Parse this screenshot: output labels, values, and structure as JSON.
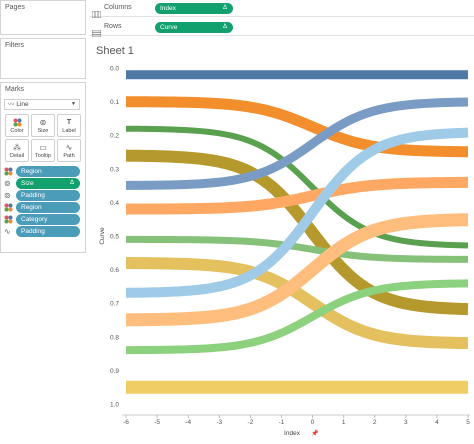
{
  "panels": {
    "pages": "Pages",
    "filters": "Filters",
    "marks": "Marks"
  },
  "shelves": {
    "columns": {
      "label": "Columns",
      "pill": "Index",
      "delta": "Δ"
    },
    "rows": {
      "label": "Rows",
      "pill": "Curve",
      "delta": "Δ"
    }
  },
  "marks": {
    "mark_type": "Line",
    "buttons": [
      {
        "label": "Color",
        "icon": "color-icon"
      },
      {
        "label": "Size",
        "icon": "size-icon"
      },
      {
        "label": "Label",
        "icon": "label-icon"
      },
      {
        "label": "Detail",
        "icon": "detail-icon"
      },
      {
        "label": "Tooltip",
        "icon": "tooltip-icon"
      },
      {
        "label": "Path",
        "icon": "path-icon"
      }
    ],
    "fields": [
      {
        "label": "Region",
        "icon": "color-icon",
        "color": "blue"
      },
      {
        "label": "Size",
        "icon": "size-icon",
        "color": "green",
        "delta": "Δ"
      },
      {
        "label": "Padding",
        "icon": "size-icon",
        "color": "blue"
      },
      {
        "label": "Region",
        "icon": "color-icon",
        "color": "blue"
      },
      {
        "label": "Category",
        "icon": "color-icon",
        "color": "blue"
      },
      {
        "label": "Padding",
        "icon": "path-icon",
        "color": "blue"
      }
    ]
  },
  "sheet": {
    "title": "Sheet 1"
  },
  "chart_data": {
    "type": "line",
    "xlabel": "Index",
    "ylabel": "Curve",
    "xlim": [
      -6,
      5
    ],
    "ylim": [
      0.0,
      1.0
    ],
    "y_reversed": true,
    "x_ticks": [
      "-6",
      "-5",
      "-4",
      "-3",
      "-2",
      "-1",
      "0",
      "1",
      "2",
      "3",
      "4",
      "5"
    ],
    "y_ticks": [
      "0.0",
      "0.1",
      "0.2",
      "0.3",
      "0.4",
      "0.5",
      "0.6",
      "0.7",
      "0.8",
      "0.9",
      "1.0"
    ],
    "grid": false,
    "series": [
      {
        "start": 0.02,
        "end": 0.02,
        "color": "#4e79a7",
        "width": 9
      },
      {
        "start": 0.1,
        "end": 0.25,
        "color": "#f28e2b",
        "width": 11
      },
      {
        "start": 0.18,
        "end": 0.53,
        "color": "#59a14f",
        "width": 6
      },
      {
        "start": 0.26,
        "end": 0.72,
        "color": "#b6992d",
        "width": 12
      },
      {
        "start": 0.35,
        "end": 0.1,
        "color": "#7a9cc4",
        "width": 9
      },
      {
        "start": 0.42,
        "end": 0.34,
        "color": "#ffa863",
        "width": 11
      },
      {
        "start": 0.51,
        "end": 0.57,
        "color": "#86c179",
        "width": 7
      },
      {
        "start": 0.58,
        "end": 0.82,
        "color": "#e4c05e",
        "width": 12
      },
      {
        "start": 0.67,
        "end": 0.19,
        "color": "#a0cbe8",
        "width": 10
      },
      {
        "start": 0.75,
        "end": 0.45,
        "color": "#ffbe7d",
        "width": 13
      },
      {
        "start": 0.84,
        "end": 0.64,
        "color": "#8cd17d",
        "width": 8
      },
      {
        "start": 0.95,
        "end": 0.95,
        "color": "#f1ce63",
        "width": 13
      }
    ]
  }
}
